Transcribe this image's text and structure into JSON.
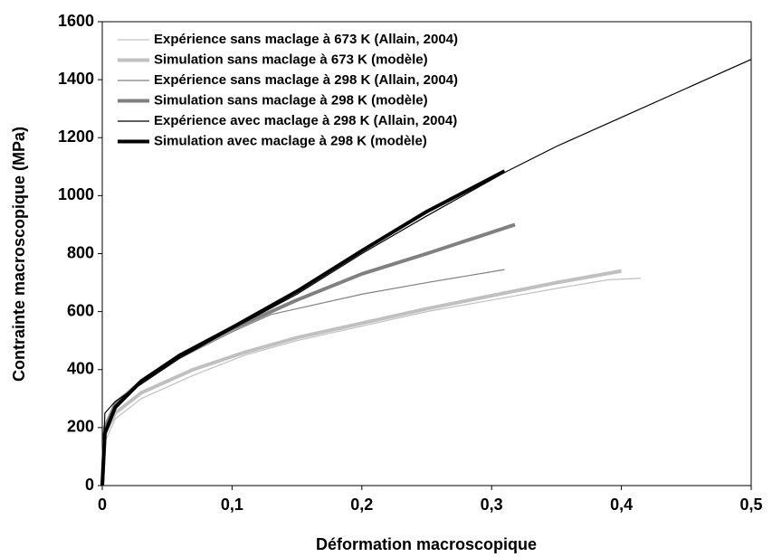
{
  "chart_data": {
    "type": "line",
    "xlabel": "Déformation macroscopique",
    "ylabel": "Contrainte macroscopique (MPa)",
    "xlim": [
      0,
      0.5
    ],
    "ylim": [
      0,
      1600
    ],
    "xticks": [
      0,
      {
        "value": 0.1,
        "label": "0,1"
      },
      {
        "value": 0.2,
        "label": "0,2"
      },
      {
        "value": 0.3,
        "label": "0,3"
      },
      {
        "value": 0.4,
        "label": "0,4"
      },
      {
        "value": 0.5,
        "label": "0,5"
      }
    ],
    "yticks": [
      0,
      200,
      400,
      600,
      800,
      1000,
      1200,
      1400,
      1600
    ],
    "legend": "upper left",
    "series": [
      {
        "name": "Expérience sans maclage à 673 K (Allain, 2004)",
        "color": "#c0c0c0",
        "width": 1.2,
        "x": [
          0,
          0.002,
          0.01,
          0.03,
          0.07,
          0.11,
          0.15,
          0.2,
          0.25,
          0.3,
          0.35,
          0.39,
          0.415
        ],
        "values": [
          0,
          150,
          230,
          300,
          380,
          450,
          500,
          550,
          600,
          640,
          680,
          710,
          715
        ]
      },
      {
        "name": "Simulation sans maclage  à 673 K (modèle)",
        "color": "#c0c0c0",
        "width": 4,
        "x": [
          0,
          0.002,
          0.01,
          0.03,
          0.07,
          0.11,
          0.15,
          0.2,
          0.25,
          0.3,
          0.35,
          0.4
        ],
        "values": [
          0,
          180,
          250,
          320,
          400,
          460,
          510,
          560,
          610,
          655,
          700,
          740
        ]
      },
      {
        "name": "Expérience sans maclage à 298 K  (Allain, 2004)",
        "color": "#808080",
        "width": 1.2,
        "x": [
          0,
          0.002,
          0.01,
          0.03,
          0.06,
          0.1,
          0.13,
          0.16,
          0.2,
          0.25,
          0.31
        ],
        "values": [
          0,
          200,
          290,
          360,
          440,
          530,
          590,
          620,
          660,
          700,
          745
        ]
      },
      {
        "name": "Simulation sans maclage à 298 K  (modèle)",
        "color": "#808080",
        "width": 4,
        "x": [
          0,
          0.002,
          0.01,
          0.03,
          0.06,
          0.1,
          0.15,
          0.2,
          0.25,
          0.318
        ],
        "values": [
          0,
          200,
          280,
          360,
          450,
          540,
          640,
          730,
          800,
          900
        ]
      },
      {
        "name": "Expérience avec maclage à 298 K  (Allain, 2004)",
        "color": "#000000",
        "width": 1.2,
        "x": [
          0,
          0.002,
          0.01,
          0.03,
          0.06,
          0.1,
          0.15,
          0.2,
          0.25,
          0.31,
          0.35,
          0.4,
          0.45,
          0.5
        ],
        "values": [
          0,
          250,
          290,
          350,
          440,
          540,
          660,
          800,
          930,
          1080,
          1170,
          1270,
          1370,
          1470
        ]
      },
      {
        "name": "Simulation avec maclage à 298 K  (modèle)",
        "color": "#000000",
        "width": 4,
        "x": [
          0,
          0.002,
          0.01,
          0.03,
          0.06,
          0.1,
          0.15,
          0.2,
          0.25,
          0.31
        ],
        "values": [
          0,
          180,
          270,
          360,
          450,
          545,
          670,
          810,
          945,
          1085
        ]
      }
    ]
  }
}
